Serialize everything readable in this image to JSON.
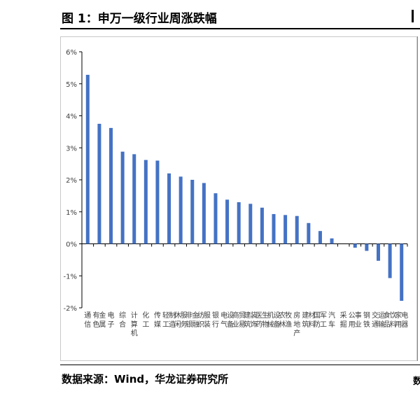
{
  "figure": {
    "title": "图 1：申万一级行业周涨跌幅",
    "source": "数据来源：Wind，华龙证券研究所",
    "right_tail": "数"
  },
  "colors": {
    "bar": "#4472C4",
    "axis": "#000000",
    "text": "#404040"
  },
  "chart_data": {
    "type": "bar",
    "title": "",
    "xlabel": "",
    "ylabel": "",
    "ylim": [
      -2,
      6
    ],
    "yticks": [
      "6%",
      "5%",
      "4%",
      "3%",
      "2%",
      "1%",
      "0%",
      "-1%",
      "-2%"
    ],
    "ytick_values": [
      6,
      5,
      4,
      3,
      2,
      1,
      0,
      -1,
      -2
    ],
    "grid": false,
    "legend": "none",
    "categories": [
      "通信",
      "有色金属",
      "电子",
      "综合",
      "计算机",
      "化工",
      "传媒",
      "轻工制造",
      "休闲服务",
      "非银金融",
      "纺织服装",
      "银行",
      "电气设备",
      "商业贸易",
      "建筑装饰",
      "医药生物",
      "机械设备",
      "农林牧渔",
      "房地产",
      "建筑材料",
      "国防军工",
      "汽车",
      "采掘",
      "公用事业",
      "钢铁",
      "交通运输",
      "食品饮料",
      "家用电器"
    ],
    "values": [
      5.28,
      3.75,
      3.62,
      2.88,
      2.8,
      2.62,
      2.6,
      2.2,
      2.1,
      2.0,
      1.9,
      1.58,
      1.38,
      1.3,
      1.25,
      1.13,
      0.93,
      0.9,
      0.87,
      0.65,
      0.4,
      0.17,
      0.0,
      -0.12,
      -0.22,
      -0.53,
      -1.07,
      -1.78
    ]
  }
}
